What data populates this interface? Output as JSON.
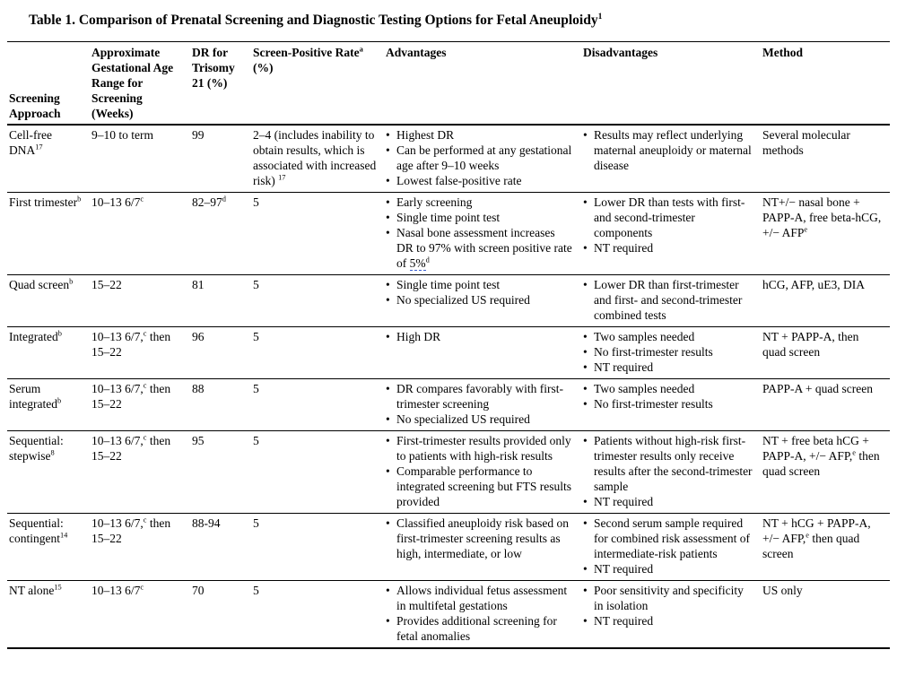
{
  "page": {
    "title": "Table 1. Comparison of Prenatal Screening and Diagnostic Testing Options for Fetal Aneuploidy^{1}"
  },
  "table": {
    "columns": [
      "Screening Approach",
      "Approximate Gestational Age Range for Screening (Weeks)",
      "DR for Trisomy 21 (%)",
      "Screen-Positive Rate^{a} (%)",
      "Advantages",
      "Disadvantages",
      "Method"
    ],
    "rows": [
      {
        "approach": "Cell-free DNA^{17}",
        "age_range": "9–10 to term",
        "dr_trisomy21": "99",
        "screen_positive_rate": "2–4 (includes inability to obtain results, which is associated with increased risk) ^{17}",
        "advantages": [
          "Highest DR",
          "Can be performed at any gestational age after 9–10 weeks",
          "Lowest false-positive rate"
        ],
        "disadvantages": [
          "Results may reflect underlying maternal aneuploidy or maternal disease"
        ],
        "method": "Several molecular methods"
      },
      {
        "approach": "First trimester^{b}",
        "age_range": "10–13 6/7^{c}",
        "dr_trisomy21": "82–97^{d}",
        "screen_positive_rate": "5",
        "advantages": [
          "Early screening",
          "Single time point test",
          "Nasal bone assessment increases DR to 97% with screen positive rate of ~{5%}^{d}"
        ],
        "disadvantages": [
          "Lower DR than tests with first- and second-trimester components",
          "NT required"
        ],
        "method": "NT+/− nasal bone + PAPP-A, free beta-hCG, +/− AFP^{e}"
      },
      {
        "approach": "Quad screen^{b}",
        "age_range": "15–22",
        "dr_trisomy21": "81",
        "screen_positive_rate": "5",
        "advantages": [
          "Single time point test",
          "No specialized US required"
        ],
        "disadvantages": [
          "Lower DR than first-trimester and first- and second-trimester combined tests"
        ],
        "method": "hCG, AFP, uE3, DIA"
      },
      {
        "approach": "Integrated^{b}",
        "age_range": "10–13 6/7,^{c} then 15–22",
        "dr_trisomy21": "96",
        "screen_positive_rate": "5",
        "advantages": [
          "High DR"
        ],
        "disadvantages": [
          "Two samples needed",
          "No first-trimester results",
          "NT required"
        ],
        "method": "NT + PAPP-A, then quad screen"
      },
      {
        "approach": "Serum integrated^{b}",
        "age_range": "10–13 6/7,^{c} then 15–22",
        "dr_trisomy21": "88",
        "screen_positive_rate": "5",
        "advantages": [
          "DR compares favorably with first-trimester screening",
          "No specialized US required"
        ],
        "disadvantages": [
          "Two samples needed",
          "No first-trimester results"
        ],
        "method": "PAPP-A + quad screen"
      },
      {
        "approach": "Sequential: stepwise^{8}",
        "age_range": "10–13 6/7,^{c} then 15–22",
        "dr_trisomy21": "95",
        "screen_positive_rate": "5",
        "advantages": [
          "First-trimester results provided only to patients with high-risk results",
          "Comparable performance to integrated screening but FTS results provided"
        ],
        "disadvantages": [
          "Patients without high-risk first-trimester results only receive results after the second-trimester sample",
          "NT required"
        ],
        "method": "NT + free beta hCG + PAPP-A, +/− AFP,^{e} then quad screen"
      },
      {
        "approach": "Sequential: contingent^{14}",
        "age_range": "10–13 6/7,^{c} then 15–22",
        "dr_trisomy21": "88-94",
        "screen_positive_rate": "5",
        "advantages": [
          "Classified aneuploidy risk based on first-trimester screening results as high, intermediate, or low"
        ],
        "disadvantages": [
          "Second serum sample required for combined risk assessment of intermediate-risk patients",
          "NT required"
        ],
        "method": "NT + hCG + PAPP-A, +/− AFP,^{e} then quad screen"
      },
      {
        "approach": "NT alone^{15}",
        "age_range": "10–13 6/7^{c}",
        "dr_trisomy21": "70",
        "screen_positive_rate": "5",
        "advantages": [
          "Allows individual fetus assessment in multifetal gestations",
          "Provides additional screening for fetal anomalies"
        ],
        "disadvantages": [
          "Poor sensitivity and specificity in isolation",
          "NT required"
        ],
        "method": "US only"
      }
    ]
  }
}
